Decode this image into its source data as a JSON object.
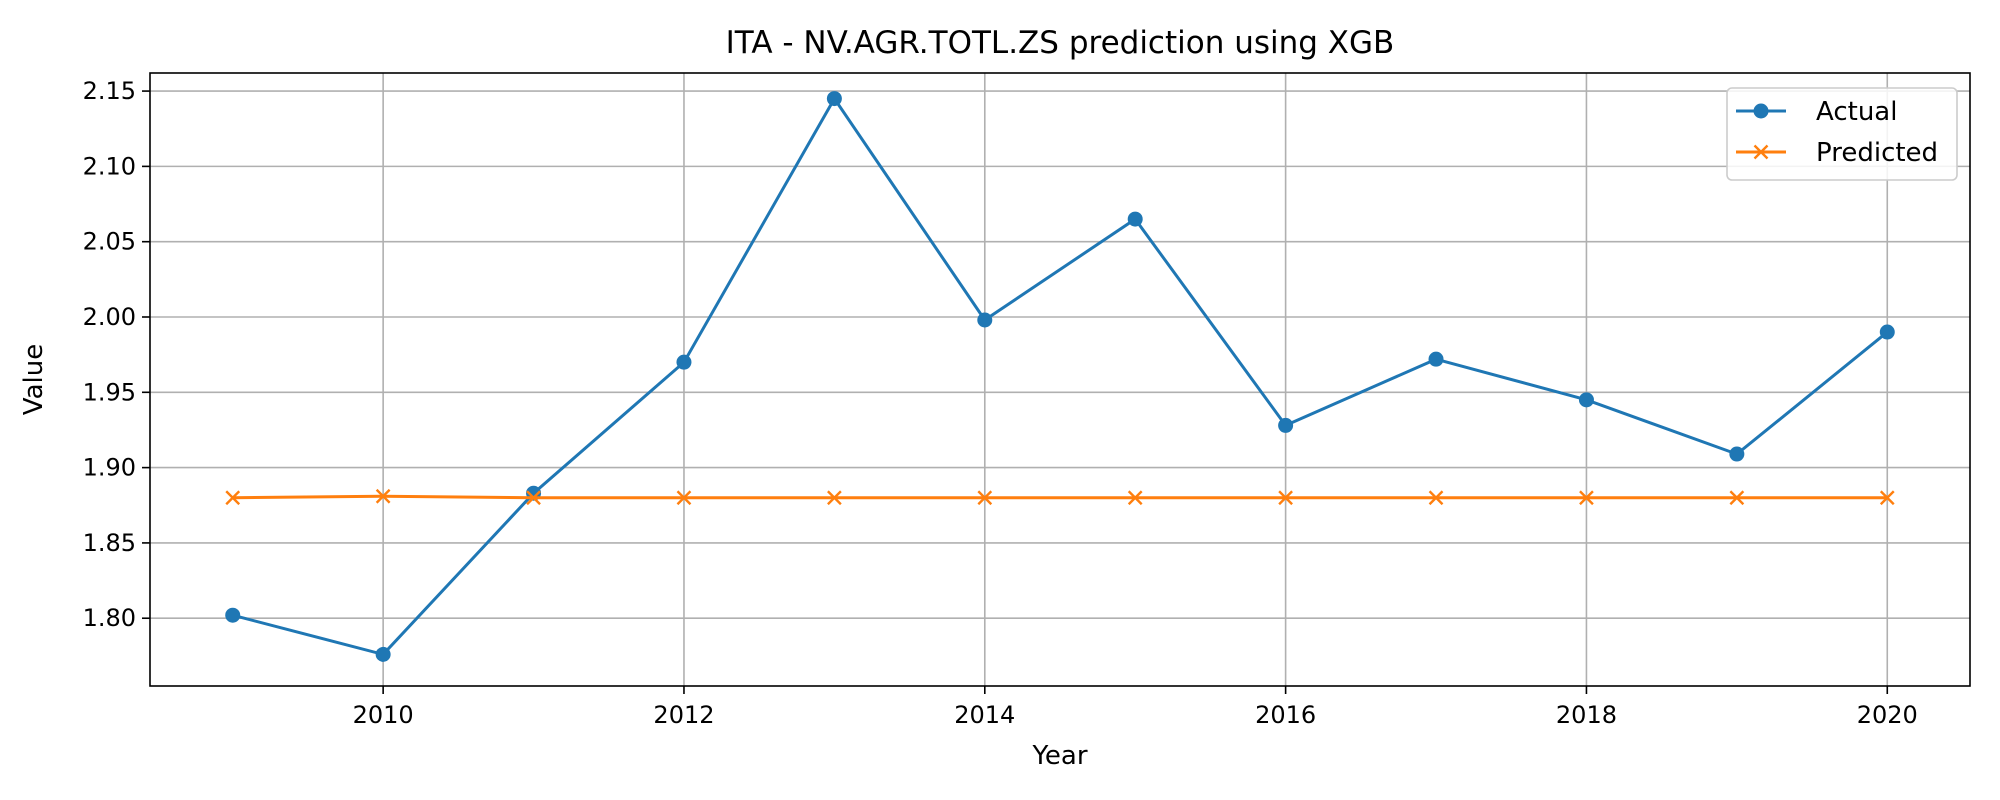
{
  "chart_data": {
    "type": "line",
    "title": "ITA - NV.AGR.TOTL.ZS prediction using XGB",
    "xlabel": "Year",
    "ylabel": "Value",
    "x": [
      2009,
      2010,
      2011,
      2012,
      2013,
      2014,
      2015,
      2016,
      2017,
      2018,
      2019,
      2020
    ],
    "xlim": [
      2008.45,
      2020.55
    ],
    "ylim": [
      1.755,
      2.162
    ],
    "xticks": [
      2010,
      2012,
      2014,
      2016,
      2018,
      2020
    ],
    "yticks": [
      1.8,
      1.85,
      1.9,
      1.95,
      2.0,
      2.05,
      2.1,
      2.15
    ],
    "ytick_labels": [
      "1.80",
      "1.85",
      "1.90",
      "1.95",
      "2.00",
      "2.05",
      "2.10",
      "2.15"
    ],
    "grid": true,
    "legend_position": "upper right",
    "series": [
      {
        "name": "Actual",
        "color": "#1f77b4",
        "marker": "circle",
        "values": [
          1.802,
          1.776,
          1.883,
          1.97,
          2.145,
          1.998,
          2.065,
          1.928,
          1.972,
          1.945,
          1.909,
          1.99
        ]
      },
      {
        "name": "Predicted",
        "color": "#ff7f0e",
        "marker": "x",
        "values": [
          1.88,
          1.881,
          1.88,
          1.88,
          1.88,
          1.88,
          1.88,
          1.88,
          1.88,
          1.88,
          1.88,
          1.88
        ]
      }
    ]
  }
}
